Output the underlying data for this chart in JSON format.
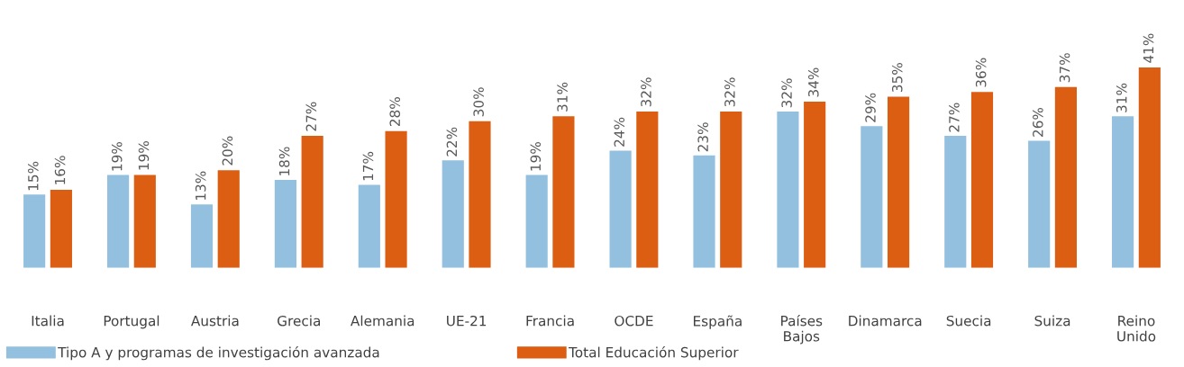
{
  "chart_data": {
    "type": "bar",
    "categories": [
      "Italia",
      "Portugal",
      "Austria",
      "Grecia",
      "Alemania",
      "UE-21",
      "Francia",
      "OCDE",
      "España",
      "Países\nBajos",
      "Dinamarca",
      "Suecia",
      "Suiza",
      "Reino\nUnido"
    ],
    "series": [
      {
        "name": "Tipo A y programas de investigación avanzada",
        "color": "#93c0df",
        "values": [
          15,
          19,
          13,
          18,
          17,
          22,
          19,
          24,
          23,
          32,
          29,
          27,
          26,
          31
        ],
        "value_labels": [
          "15%",
          "19%",
          "13%",
          "18%",
          "17%",
          "22%",
          "19%",
          "24%",
          "23%",
          "32%",
          "29%",
          "27%",
          "26%",
          "31%"
        ]
      },
      {
        "name": "Total Educación Superior",
        "color": "#dc5e12",
        "values": [
          16,
          19,
          20,
          27,
          28,
          30,
          31,
          32,
          32,
          34,
          35,
          36,
          37,
          41
        ],
        "value_labels": [
          "16%",
          "19%",
          "20%",
          "27%",
          "28%",
          "30%",
          "31%",
          "32%",
          "32%",
          "34%",
          "35%",
          "36%",
          "37%",
          "41%"
        ]
      }
    ],
    "legend": "bottom left",
    "grid": false
  }
}
